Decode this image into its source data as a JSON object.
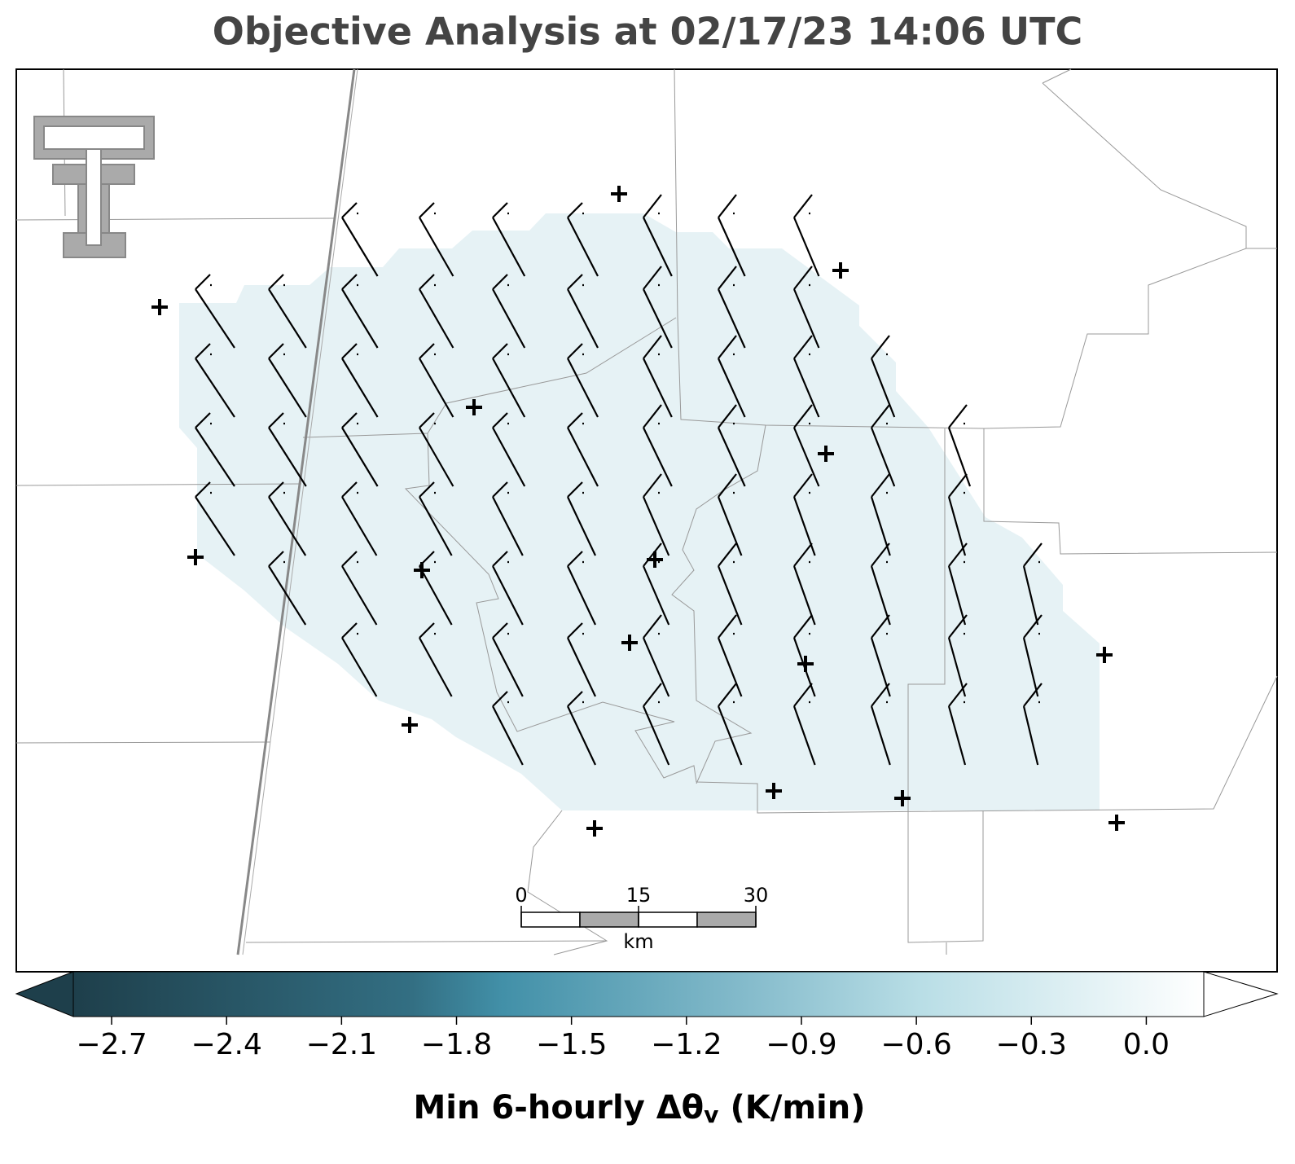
{
  "title": "Objective Analysis at 02/17/23 14:06 UTC",
  "scale_bar": {
    "ticks": [
      0,
      15,
      30
    ],
    "unit": "km"
  },
  "colorbar": {
    "label": [
      "Min 6-hourly Δθ",
      "v",
      "(K/min)"
    ],
    "clim": [
      -2.8,
      0.15
    ],
    "ticks": [
      {
        "value": -2.7,
        "label": "−2.7"
      },
      {
        "value": -2.4,
        "label": "−2.4"
      },
      {
        "value": -2.1,
        "label": "−2.1"
      },
      {
        "value": -1.8,
        "label": "−1.8"
      },
      {
        "value": -1.5,
        "label": "−1.5"
      },
      {
        "value": -1.2,
        "label": "−1.2"
      },
      {
        "value": -0.9,
        "label": "−0.9"
      },
      {
        "value": -0.6,
        "label": "−0.6"
      },
      {
        "value": -0.3,
        "label": "−0.3"
      },
      {
        "value": 0.0,
        "label": "0.0"
      }
    ]
  }
}
